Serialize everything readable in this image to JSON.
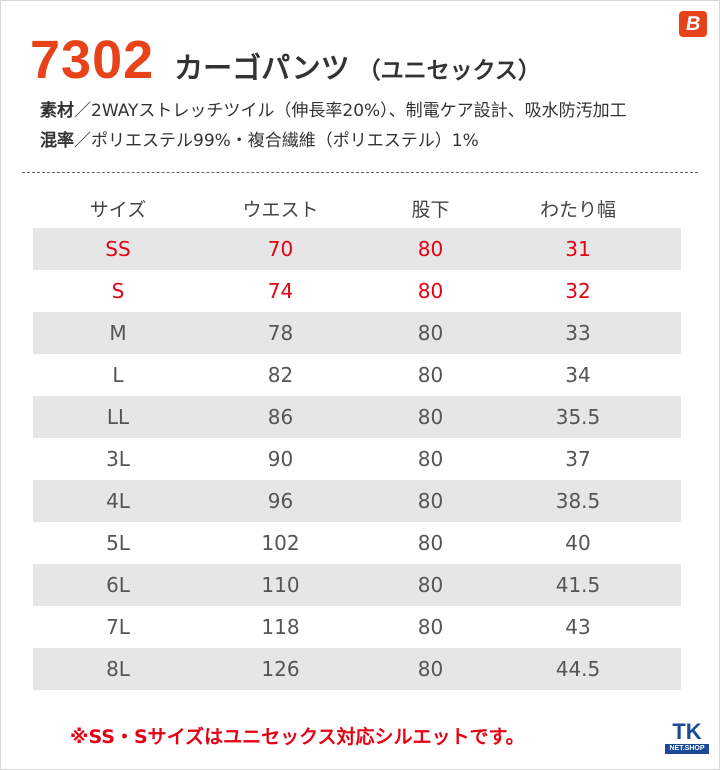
{
  "header": {
    "model_number": "7302",
    "title": "カーゴパンツ",
    "subtitle": "（ユニセックス）"
  },
  "brand_logo": {
    "letter": "B",
    "icon": "brand-b-icon",
    "color": "#e8421a"
  },
  "spec": {
    "material_label": "素材",
    "material_text": "／2WAYストレッチツイル（伸長率20%）、制電ケア設計、吸水防汚加工",
    "blend_label": "混率",
    "blend_text": "／ポリエステル99%・複合繊維（ポリエステル）1%"
  },
  "table": {
    "headers": [
      "サイズ",
      "ウエスト",
      "股下",
      "わたり幅"
    ],
    "rows": [
      [
        "SS",
        "70",
        "80",
        "31"
      ],
      [
        "S",
        "74",
        "80",
        "32"
      ],
      [
        "M",
        "78",
        "80",
        "33"
      ],
      [
        "L",
        "82",
        "80",
        "34"
      ],
      [
        "LL",
        "86",
        "80",
        "35.5"
      ],
      [
        "3L",
        "90",
        "80",
        "37"
      ],
      [
        "4L",
        "96",
        "80",
        "38.5"
      ],
      [
        "5L",
        "102",
        "80",
        "40"
      ],
      [
        "6L",
        "110",
        "80",
        "41.5"
      ],
      [
        "7L",
        "118",
        "80",
        "43"
      ],
      [
        "8L",
        "126",
        "80",
        "44.5"
      ]
    ]
  },
  "note": "※SS・Sサイズはユニセックス対応シルエットです。",
  "shop_logo": {
    "top": "TK",
    "bottom": "NET.SHOP"
  },
  "colors": {
    "accent": "#e8421a",
    "highlight_red": "#e60012",
    "row_shade": "#e6e6e6",
    "shop_blue": "#1a4a9a"
  }
}
